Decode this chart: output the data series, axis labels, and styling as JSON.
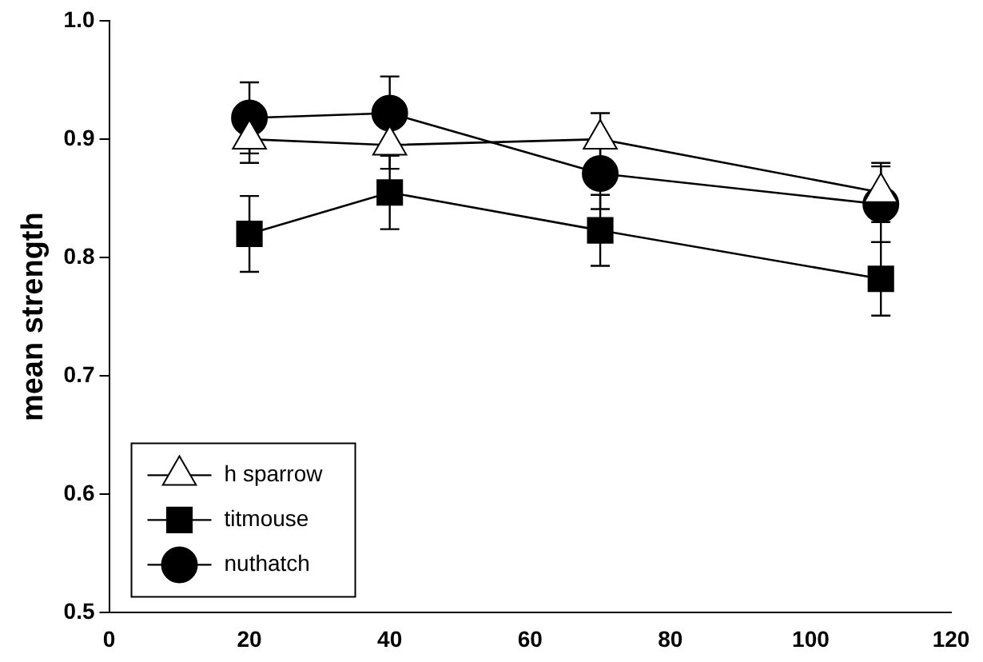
{
  "chart_data": {
    "type": "line",
    "ylabel": "mean strength",
    "x": [
      20,
      40,
      70,
      110
    ],
    "xlim": [
      0,
      120
    ],
    "xticks": [
      0,
      20,
      40,
      60,
      80,
      100,
      120
    ],
    "ylim": [
      0.5,
      1.0
    ],
    "yticks": [
      {
        "value": 0.5,
        "label": "0.5"
      },
      {
        "value": 0.6,
        "label": "0.6"
      },
      {
        "value": 0.7,
        "label": "0.7"
      },
      {
        "value": 0.8,
        "label": "0.8"
      },
      {
        "value": 0.9,
        "label": "0.9"
      },
      {
        "value": 1.0,
        "label": "1.0"
      }
    ],
    "grid": false,
    "legend": "bottom left",
    "line_style": "solid",
    "series": [
      {
        "name": "h sparrow",
        "color": "#ffffff",
        "marker": "triangle",
        "values": [
          0.9,
          0.895,
          0.9,
          0.855
        ],
        "errors": [
          0.02,
          0.02,
          0.022,
          0.025
        ]
      },
      {
        "name": "titmouse",
        "color": "#000000",
        "marker": "square",
        "values": [
          0.82,
          0.855,
          0.823,
          0.782
        ],
        "errors": [
          0.032,
          0.031,
          0.03,
          0.031
        ]
      },
      {
        "name": "nuthatch",
        "color": "#000000",
        "marker": "circle",
        "values": [
          0.918,
          0.922,
          0.871,
          0.845
        ],
        "errors": [
          0.03,
          0.031,
          0.03,
          0.032
        ]
      }
    ]
  }
}
